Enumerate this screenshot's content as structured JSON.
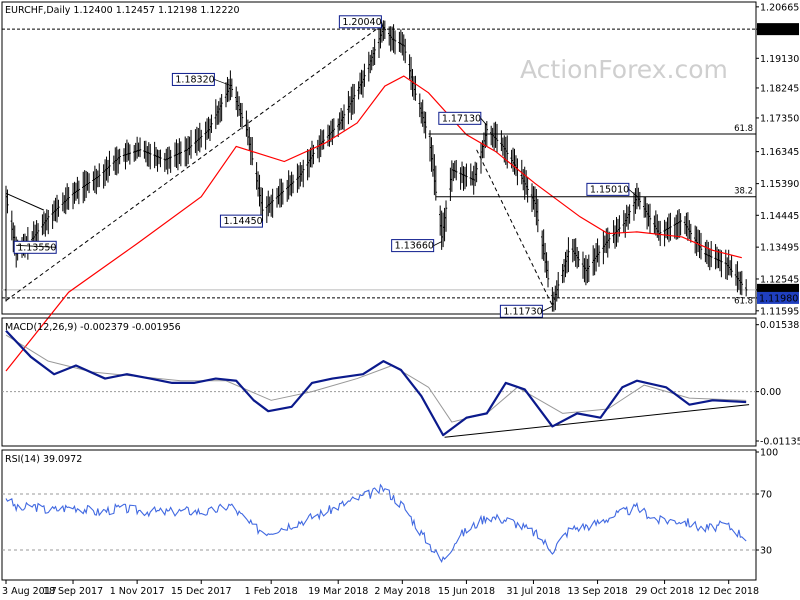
{
  "chart_data": [
    {
      "type": "candlestick",
      "title": "EURCHF,Daily  1.12400 1.12457 1.12198 1.12220",
      "watermark": "ActionForex.com",
      "ylim": [
        1.115,
        1.2075
      ],
      "yticks": [
        "1.20665",
        "1.20000",
        "1.19130",
        "1.18245",
        "1.17350",
        "1.16345",
        "1.15390",
        "1.14445",
        "1.13495",
        "1.12545",
        "1.12220",
        "1.11980",
        "1.11595"
      ],
      "current_price": "1.12220",
      "price_markers": [
        {
          "value": 1.2,
          "label": "1.20000",
          "style": "boxed-black"
        },
        {
          "value": 1.1222,
          "label": "1.12220",
          "style": "boxed-black"
        },
        {
          "value": 1.1198,
          "label": "1.11980",
          "style": "boxed-blue"
        }
      ],
      "level_labels": [
        {
          "label": "1.20040",
          "date": "2018-04-19",
          "value": 1.2004
        },
        {
          "label": "1.18320",
          "date": "2018-01-04",
          "value": 1.1832
        },
        {
          "label": "1.17130",
          "date": "2018-06-29",
          "value": 1.1713
        },
        {
          "label": "1.15010",
          "date": "2018-10-10",
          "value": 1.1501
        },
        {
          "label": "1.14450",
          "date": "2018-01-26",
          "value": 1.1445
        },
        {
          "label": "1.13660",
          "date": "2018-05-29",
          "value": 1.1366
        },
        {
          "label": "1.13550",
          "date": "2017-08-10",
          "value": 1.1355
        },
        {
          "label": "1.11730",
          "date": "2018-08-13",
          "value": 1.1173
        }
      ],
      "fib_levels": [
        {
          "label": "61.8",
          "value": 1.1687
        },
        {
          "label": "38.2",
          "value": 1.15
        },
        {
          "label": "61.8",
          "value": 1.1172
        }
      ],
      "horizontal_lines": [
        1.2,
        1.1198
      ],
      "trendlines": [
        {
          "from": [
            "2017-08-03",
            1.119
          ],
          "to": [
            "2018-04-19",
            1.2015
          ],
          "style": "dashed"
        },
        {
          "from": [
            "2018-06-22",
            1.164
          ],
          "to": [
            "2018-08-13",
            1.1175
          ],
          "style": "dashed"
        },
        {
          "from": [
            "2017-08-03",
            1.151
          ],
          "to": [
            "2017-08-29",
            1.146
          ],
          "style": "solid"
        }
      ],
      "moving_average": {
        "name": "",
        "color": "#ff0000",
        "points": [
          [
            "2017-08-03",
            1.098
          ],
          [
            "2017-09-15",
            1.1215
          ],
          [
            "2017-11-01",
            1.136
          ],
          [
            "2017-12-15",
            1.15
          ],
          [
            "2018-01-08",
            1.165
          ],
          [
            "2018-02-10",
            1.1605
          ],
          [
            "2018-03-10",
            1.166
          ],
          [
            "2018-04-01",
            1.172
          ],
          [
            "2018-04-20",
            1.183
          ],
          [
            "2018-05-03",
            1.186
          ],
          [
            "2018-05-20",
            1.181
          ],
          [
            "2018-06-15",
            1.1685
          ],
          [
            "2018-07-05",
            1.1635
          ],
          [
            "2018-08-01",
            1.154
          ],
          [
            "2018-09-01",
            1.144
          ],
          [
            "2018-09-20",
            1.139
          ],
          [
            "2018-10-10",
            1.1395
          ],
          [
            "2018-11-10",
            1.138
          ],
          [
            "2018-12-01",
            1.134
          ],
          [
            "2018-12-21",
            1.1318
          ]
        ]
      },
      "price_path": [
        [
          "2017-08-03",
          1.15
        ],
        [
          "2017-08-10",
          1.133
        ],
        [
          "2017-08-22",
          1.138
        ],
        [
          "2017-09-01",
          1.144
        ],
        [
          "2017-09-18",
          1.151
        ],
        [
          "2017-10-05",
          1.156
        ],
        [
          "2017-10-20",
          1.162
        ],
        [
          "2017-11-03",
          1.164
        ],
        [
          "2017-11-20",
          1.161
        ],
        [
          "2017-12-05",
          1.164
        ],
        [
          "2017-12-20",
          1.17
        ],
        [
          "2018-01-04",
          1.1832
        ],
        [
          "2018-01-15",
          1.17
        ],
        [
          "2018-01-26",
          1.146
        ],
        [
          "2018-02-05",
          1.15
        ],
        [
          "2018-02-20",
          1.156
        ],
        [
          "2018-03-05",
          1.165
        ],
        [
          "2018-03-20",
          1.172
        ],
        [
          "2018-04-05",
          1.185
        ],
        [
          "2018-04-19",
          1.2004
        ],
        [
          "2018-04-25",
          1.197
        ],
        [
          "2018-05-03",
          1.195
        ],
        [
          "2018-05-10",
          1.182
        ],
        [
          "2018-05-20",
          1.168
        ],
        [
          "2018-05-29",
          1.138
        ],
        [
          "2018-06-05",
          1.158
        ],
        [
          "2018-06-20",
          1.155
        ],
        [
          "2018-06-29",
          1.17
        ],
        [
          "2018-07-10",
          1.165
        ],
        [
          "2018-07-20",
          1.158
        ],
        [
          "2018-08-01",
          1.148
        ],
        [
          "2018-08-13",
          1.118
        ],
        [
          "2018-08-25",
          1.135
        ],
        [
          "2018-09-05",
          1.128
        ],
        [
          "2018-09-20",
          1.137
        ],
        [
          "2018-10-01",
          1.142
        ],
        [
          "2018-10-10",
          1.15
        ],
        [
          "2018-10-25",
          1.139
        ],
        [
          "2018-11-10",
          1.143
        ],
        [
          "2018-11-25",
          1.133
        ],
        [
          "2018-12-10",
          1.13
        ],
        [
          "2018-12-24",
          1.1222
        ]
      ],
      "xticks": [
        "3 Aug 2017",
        "18 Sep 2017",
        "1 Nov 2017",
        "15 Dec 2017",
        "1 Feb 2018",
        "19 Mar 2018",
        "2 May 2018",
        "15 Jun 2018",
        "31 Jul 2018",
        "13 Sep 2018",
        "29 Oct 2018",
        "12 Dec 2018"
      ]
    },
    {
      "type": "line",
      "title": "MACD(12,26,9) -0.002379 -0.001956",
      "ylim": [
        -0.0125,
        0.016
      ],
      "yticks": [
        "0.015385",
        "0.00",
        "-0.011352"
      ],
      "zero_label": "0.00",
      "series": [
        {
          "name": "",
          "color": "#0b1a8c",
          "points": [
            [
              "2017-08-03",
              0.014
            ],
            [
              "2017-08-20",
              0.008
            ],
            [
              "2017-09-05",
              0.004
            ],
            [
              "2017-09-20",
              0.006
            ],
            [
              "2017-10-10",
              0.003
            ],
            [
              "2017-10-25",
              0.004
            ],
            [
              "2017-11-10",
              0.003
            ],
            [
              "2017-11-25",
              0.002
            ],
            [
              "2017-12-10",
              0.002
            ],
            [
              "2017-12-25",
              0.003
            ],
            [
              "2018-01-08",
              0.0025
            ],
            [
              "2018-01-20",
              -0.002
            ],
            [
              "2018-01-30",
              -0.0045
            ],
            [
              "2018-02-15",
              -0.0035
            ],
            [
              "2018-03-01",
              0.002
            ],
            [
              "2018-03-15",
              0.003
            ],
            [
              "2018-04-05",
              0.004
            ],
            [
              "2018-04-19",
              0.007
            ],
            [
              "2018-05-01",
              0.005
            ],
            [
              "2018-05-15",
              -0.001
            ],
            [
              "2018-05-30",
              -0.01
            ],
            [
              "2018-06-15",
              -0.006
            ],
            [
              "2018-06-29",
              -0.005
            ],
            [
              "2018-07-12",
              0.002
            ],
            [
              "2018-07-25",
              0.0005
            ],
            [
              "2018-08-13",
              -0.008
            ],
            [
              "2018-08-30",
              -0.005
            ],
            [
              "2018-09-15",
              -0.006
            ],
            [
              "2018-09-30",
              0.001
            ],
            [
              "2018-10-10",
              0.0025
            ],
            [
              "2018-10-30",
              0.001
            ],
            [
              "2018-11-15",
              -0.003
            ],
            [
              "2018-12-01",
              -0.002
            ],
            [
              "2018-12-24",
              -0.0024
            ]
          ]
        },
        {
          "name": "",
          "color": "#999999",
          "points": [
            [
              "2017-08-03",
              0.013
            ],
            [
              "2017-09-01",
              0.007
            ],
            [
              "2017-10-01",
              0.0045
            ],
            [
              "2017-11-01",
              0.0035
            ],
            [
              "2017-12-01",
              0.0025
            ],
            [
              "2018-01-01",
              0.0025
            ],
            [
              "2018-02-01",
              -0.002
            ],
            [
              "2018-03-01",
              0.0
            ],
            [
              "2018-04-01",
              0.003
            ],
            [
              "2018-04-25",
              0.006
            ],
            [
              "2018-05-20",
              0.001
            ],
            [
              "2018-06-05",
              -0.007
            ],
            [
              "2018-06-29",
              -0.005
            ],
            [
              "2018-07-20",
              0.001
            ],
            [
              "2018-08-20",
              -0.005
            ],
            [
              "2018-09-20",
              -0.004
            ],
            [
              "2018-10-15",
              0.0015
            ],
            [
              "2018-11-15",
              -0.0015
            ],
            [
              "2018-12-24",
              -0.002
            ]
          ]
        }
      ],
      "trendlines": [
        {
          "from": [
            "2018-05-31",
            -0.0105
          ],
          "to": [
            "2018-12-26",
            -0.003
          ],
          "style": "solid"
        }
      ]
    },
    {
      "type": "line",
      "title": "RSI(14) 39.0972",
      "ylim": [
        10,
        100
      ],
      "yticks": [
        "100",
        "70",
        "30"
      ],
      "levels": [
        70,
        30
      ],
      "series": [
        {
          "name": "",
          "color": "#4169e1",
          "points": [
            [
              "2017-08-03",
              68
            ],
            [
              "2017-08-12",
              58
            ],
            [
              "2017-08-20",
              62
            ],
            [
              "2017-09-01",
              58
            ],
            [
              "2017-09-18",
              61
            ],
            [
              "2017-10-05",
              57
            ],
            [
              "2017-10-20",
              60
            ],
            [
              "2017-11-03",
              58
            ],
            [
              "2017-11-20",
              57
            ],
            [
              "2017-12-05",
              58
            ],
            [
              "2017-12-20",
              57
            ],
            [
              "2018-01-04",
              62
            ],
            [
              "2018-01-20",
              46
            ],
            [
              "2018-01-30",
              43
            ],
            [
              "2018-02-20",
              50
            ],
            [
              "2018-03-10",
              57
            ],
            [
              "2018-03-25",
              64
            ],
            [
              "2018-04-10",
              70
            ],
            [
              "2018-04-19",
              74
            ],
            [
              "2018-05-03",
              61
            ],
            [
              "2018-05-15",
              42
            ],
            [
              "2018-05-29",
              22
            ],
            [
              "2018-06-10",
              40
            ],
            [
              "2018-06-29",
              54
            ],
            [
              "2018-07-15",
              51
            ],
            [
              "2018-08-01",
              42
            ],
            [
              "2018-08-13",
              30
            ],
            [
              "2018-08-25",
              45
            ],
            [
              "2018-09-10",
              48
            ],
            [
              "2018-09-25",
              55
            ],
            [
              "2018-10-10",
              60
            ],
            [
              "2018-10-25",
              51
            ],
            [
              "2018-11-10",
              51
            ],
            [
              "2018-11-25",
              45
            ],
            [
              "2018-12-10",
              48
            ],
            [
              "2018-12-24",
              39
            ]
          ]
        }
      ]
    }
  ]
}
